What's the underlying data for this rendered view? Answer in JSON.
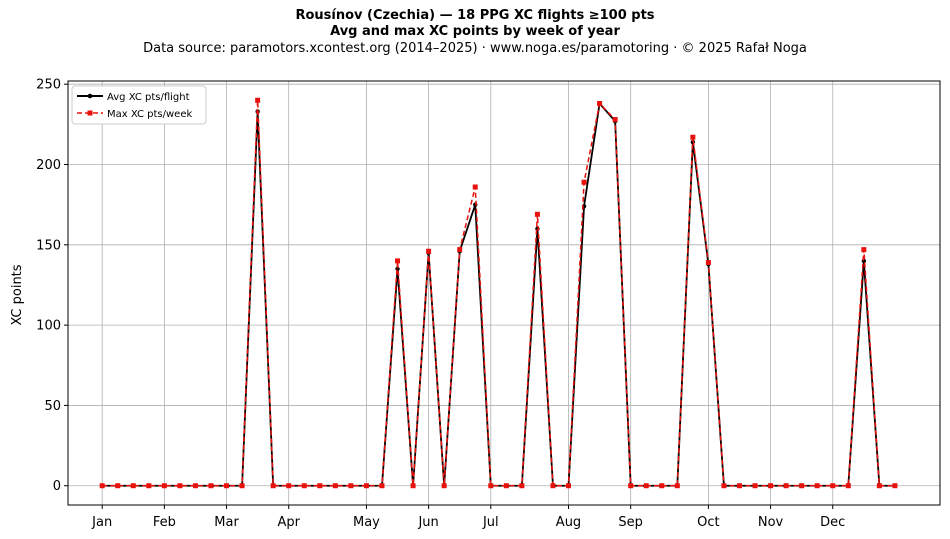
{
  "title": {
    "line1": "Rousínov (Czechia)  —  18 PPG XC flights ≥100 pts",
    "line2": "Avg and max XC points by week of year",
    "line3": "Data source: paramotors.xcontest.org (2014–2025)  ·  www.noga.es/paramotoring  ·  © 2025 Rafał Noga"
  },
  "chart_data": {
    "type": "line",
    "ylabel": "XC points",
    "xlabel": "",
    "ylim": [
      -12,
      252
    ],
    "xlim": [
      -2.2,
      53.9
    ],
    "y_ticks": [
      0,
      50,
      100,
      150,
      200,
      250
    ],
    "x_ticks": [
      {
        "label": "Jan",
        "x": 0
      },
      {
        "label": "Feb",
        "x": 4
      },
      {
        "label": "Mar",
        "x": 8
      },
      {
        "label": "Apr",
        "x": 12
      },
      {
        "label": "May",
        "x": 17
      },
      {
        "label": "Jun",
        "x": 21
      },
      {
        "label": "Jul",
        "x": 25
      },
      {
        "label": "Aug",
        "x": 30
      },
      {
        "label": "Sep",
        "x": 34
      },
      {
        "label": "Oct",
        "x": 39
      },
      {
        "label": "Nov",
        "x": 43
      },
      {
        "label": "Dec",
        "x": 47
      }
    ],
    "grid": true,
    "legend_position": "top-left",
    "x": [
      0,
      1,
      2,
      3,
      4,
      5,
      6,
      7,
      8,
      9,
      10,
      11,
      12,
      13,
      14,
      15,
      16,
      17,
      18,
      19,
      20,
      21,
      22,
      23,
      24,
      25,
      26,
      27,
      28,
      29,
      30,
      31,
      32,
      33,
      34,
      35,
      36,
      37,
      38,
      39,
      40,
      41,
      42,
      43,
      44,
      45,
      46,
      47,
      48,
      49,
      50,
      51
    ],
    "series": [
      {
        "name": "Avg XC pts/flight",
        "color": "#000000",
        "style": "solid",
        "marker": "circle",
        "values": [
          0,
          0,
          0,
          0,
          0,
          0,
          0,
          0,
          0,
          0,
          233,
          0,
          0,
          0,
          0,
          0,
          0,
          0,
          0,
          135,
          0,
          145,
          0,
          146,
          175,
          0,
          0,
          0,
          160,
          0,
          0,
          174,
          238,
          227,
          0,
          0,
          0,
          0,
          214,
          138,
          0,
          0,
          0,
          0,
          0,
          0,
          0,
          0,
          0,
          140,
          0,
          0
        ]
      },
      {
        "name": "Max XC pts/week",
        "color": "#e8120c",
        "style": "dashed",
        "marker": "square",
        "values": [
          0,
          0,
          0,
          0,
          0,
          0,
          0,
          0,
          0,
          0,
          240,
          0,
          0,
          0,
          0,
          0,
          0,
          0,
          0,
          140,
          0,
          146,
          0,
          147,
          186,
          0,
          0,
          0,
          169,
          0,
          0,
          189,
          238,
          228,
          0,
          0,
          0,
          0,
          217,
          139,
          0,
          0,
          0,
          0,
          0,
          0,
          0,
          0,
          0,
          147,
          0,
          0
        ]
      }
    ]
  }
}
